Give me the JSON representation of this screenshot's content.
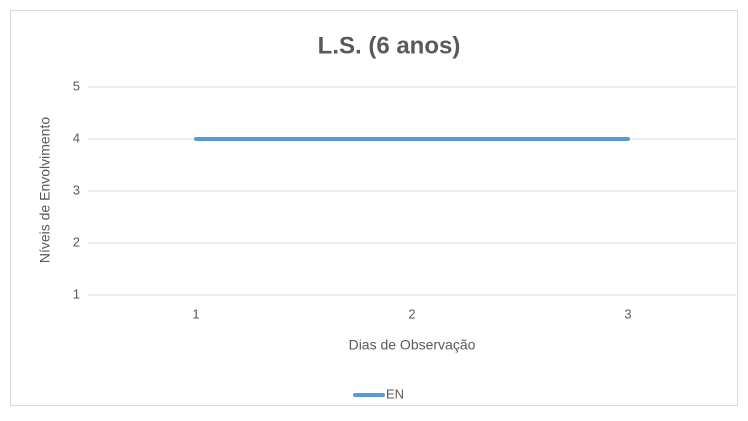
{
  "chart_data": {
    "type": "line",
    "title": "L.S. (6 anos)",
    "x_label": "Dias de Observação",
    "y_label": "Níveis de Envolvimento",
    "categories": [
      "1",
      "2",
      "3"
    ],
    "series": [
      {
        "name": "EN",
        "color": "#5b9bd5",
        "values": [
          4,
          4,
          4
        ]
      }
    ],
    "ylim": [
      1,
      5
    ],
    "yticks": [
      1,
      2,
      3,
      4,
      5
    ],
    "grid": true,
    "legend": "bottom"
  }
}
